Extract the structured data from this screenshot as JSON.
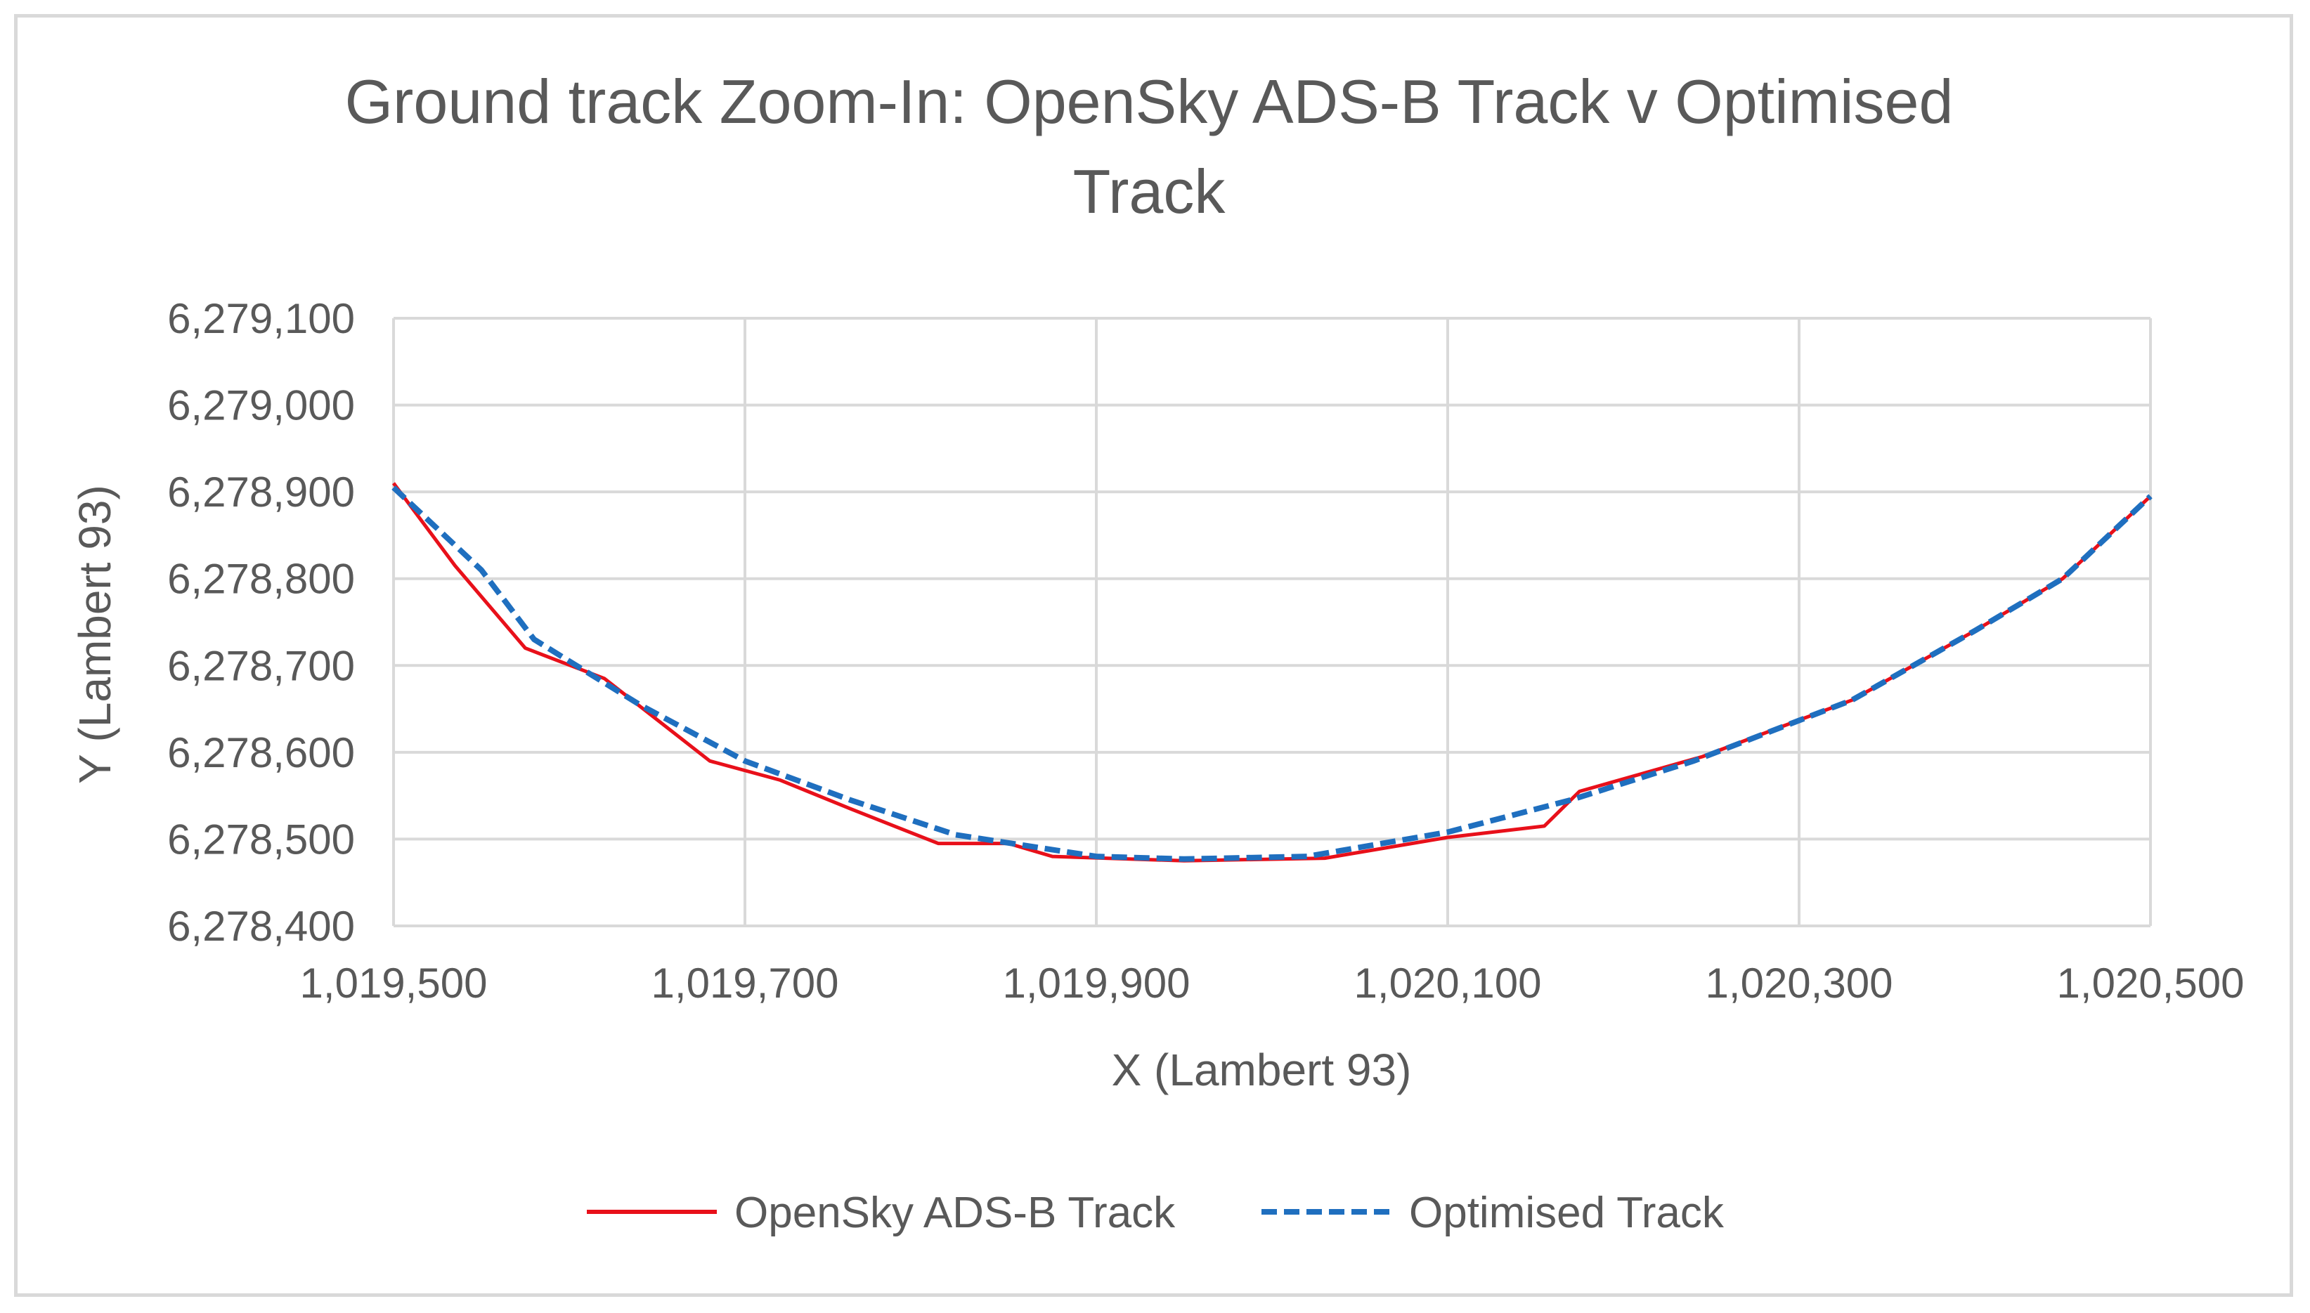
{
  "chart_data": {
    "type": "line",
    "title_lines": [
      "Ground track Zoom-In: OpenSky ADS-B Track v Optimised",
      "Track"
    ],
    "xlabel": "X (Lambert 93)",
    "ylabel": "Y (Lambert 93)",
    "xlim": [
      1019500,
      1020500
    ],
    "ylim": [
      6278400,
      6279100
    ],
    "x_ticks": [
      1019500,
      1019700,
      1019900,
      1020100,
      1020300,
      1020500
    ],
    "x_tick_labels": [
      "1,019,500",
      "1,019,700",
      "1,019,900",
      "1,020,100",
      "1,020,300",
      "1,020,500"
    ],
    "y_ticks": [
      6278400,
      6278500,
      6278600,
      6278700,
      6278800,
      6278900,
      6279000,
      6279100
    ],
    "y_tick_labels": [
      "6,278,400",
      "6,278,500",
      "6,278,600",
      "6,278,700",
      "6,278,800",
      "6,278,900",
      "6,279,000",
      "6,279,100"
    ],
    "grid": true,
    "legend_position": "bottom",
    "series": [
      {
        "name": "OpenSky ADS-B Track",
        "color": "#e8101a",
        "style": "solid",
        "points": [
          [
            1019500,
            6278910
          ],
          [
            1019535,
            6278815
          ],
          [
            1019575,
            6278720
          ],
          [
            1019620,
            6278685
          ],
          [
            1019680,
            6278590
          ],
          [
            1019720,
            6278568
          ],
          [
            1019760,
            6278535
          ],
          [
            1019810,
            6278495
          ],
          [
            1019850,
            6278495
          ],
          [
            1019875,
            6278480
          ],
          [
            1019950,
            6278475
          ],
          [
            1020030,
            6278478
          ],
          [
            1020100,
            6278502
          ],
          [
            1020155,
            6278515
          ],
          [
            1020175,
            6278555
          ],
          [
            1020245,
            6278595
          ],
          [
            1020330,
            6278660
          ],
          [
            1020400,
            6278740
          ],
          [
            1020450,
            6278800
          ],
          [
            1020500,
            6278895
          ]
        ]
      },
      {
        "name": "Optimised Track",
        "color": "#1f6fbf",
        "style": "dashed",
        "points": [
          [
            1019500,
            6278905
          ],
          [
            1019550,
            6278810
          ],
          [
            1019580,
            6278730
          ],
          [
            1019640,
            6278655
          ],
          [
            1019700,
            6278590
          ],
          [
            1019760,
            6278545
          ],
          [
            1019820,
            6278505
          ],
          [
            1019900,
            6278480
          ],
          [
            1019950,
            6278477
          ],
          [
            1020020,
            6278480
          ],
          [
            1020100,
            6278508
          ],
          [
            1020170,
            6278545
          ],
          [
            1020240,
            6278590
          ],
          [
            1020330,
            6278660
          ],
          [
            1020400,
            6278740
          ],
          [
            1020450,
            6278800
          ],
          [
            1020500,
            6278895
          ]
        ]
      }
    ]
  }
}
